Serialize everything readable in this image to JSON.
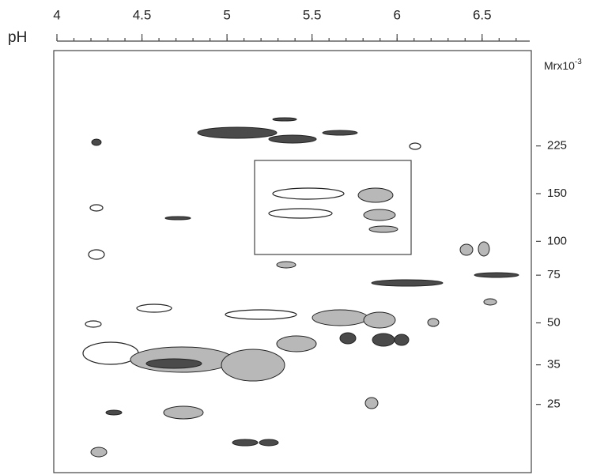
{
  "figure": {
    "x_axis": {
      "label": "pH",
      "lim": [
        4,
        6.78
      ],
      "ticks": [
        4,
        4.5,
        5,
        5.5,
        6,
        6.5
      ],
      "minor_step": 0.1
    },
    "y_axis": {
      "label": "Mrx10",
      "label_exponent": "-3",
      "log": true,
      "lim": [
        14,
        506
      ],
      "ticks": [
        225,
        150,
        100,
        75,
        50,
        35,
        25
      ]
    }
  }
}
